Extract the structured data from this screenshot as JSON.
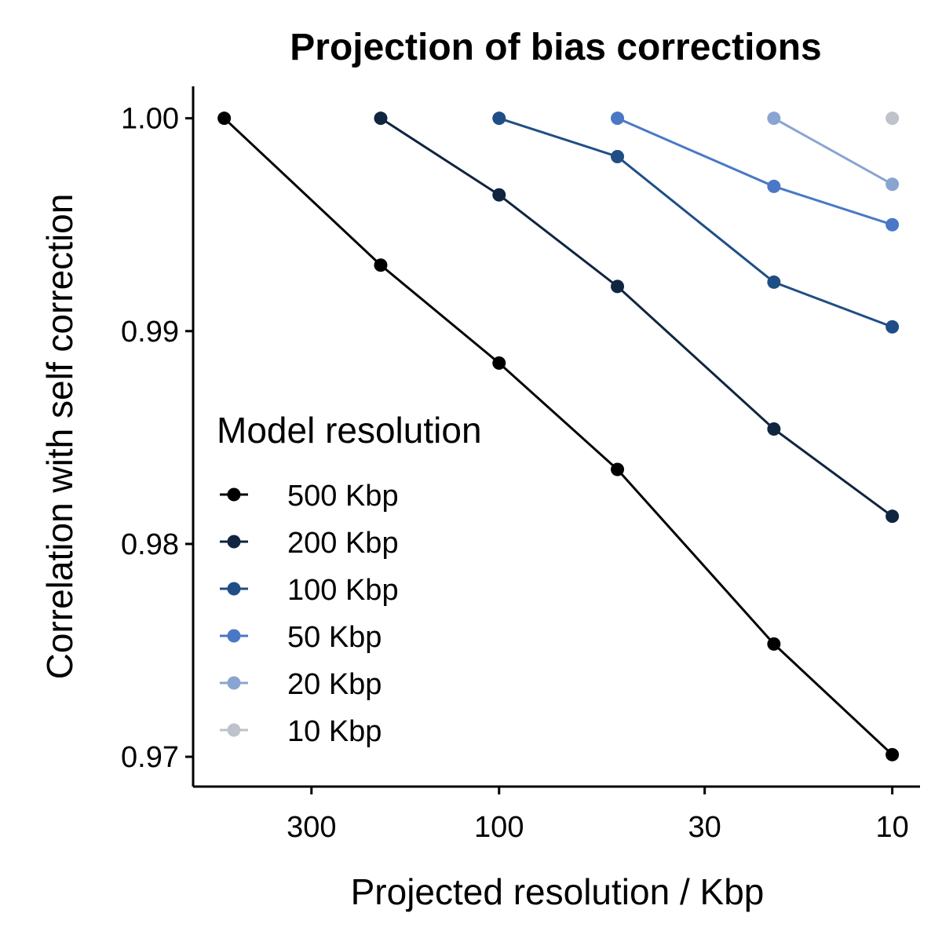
{
  "chart_data": {
    "type": "line",
    "title": "Projection of bias corrections",
    "xlabel": "Projected resolution / Kbp",
    "ylabel": "Correlation with self correction",
    "x_scale": "log",
    "x_reversed": true,
    "xlim": [
      600,
      8.5
    ],
    "ylim": [
      0.9686,
      1.0015
    ],
    "x_ticks": [
      300,
      100,
      30,
      10
    ],
    "x_tick_labels": [
      "300",
      "100",
      "30",
      "10"
    ],
    "y_ticks": [
      0.97,
      0.98,
      0.99,
      1.0
    ],
    "y_tick_labels": [
      "0.97",
      "0.98",
      "0.99",
      "1.00"
    ],
    "grid": false,
    "legend": {
      "title": "Model resolution",
      "position": "inside-left"
    },
    "series": [
      {
        "name": "500 Kbp",
        "color": "#000000",
        "x": [
          500,
          200,
          100,
          50,
          20,
          10
        ],
        "y": [
          1.0,
          0.9931,
          0.9885,
          0.9835,
          0.9753,
          0.9701
        ]
      },
      {
        "name": "200 Kbp",
        "color": "#0f2540",
        "x": [
          200,
          100,
          50,
          20,
          10
        ],
        "y": [
          1.0,
          0.9964,
          0.9921,
          0.9854,
          0.9813
        ]
      },
      {
        "name": "100 Kbp",
        "color": "#1f4e86",
        "x": [
          100,
          50,
          20,
          10
        ],
        "y": [
          1.0,
          0.9982,
          0.9923,
          0.9902
        ]
      },
      {
        "name": "50 Kbp",
        "color": "#4a78c5",
        "x": [
          50,
          20,
          10
        ],
        "y": [
          1.0,
          0.9968,
          0.995
        ]
      },
      {
        "name": "20 Kbp",
        "color": "#8aa4d2",
        "x": [
          20,
          10
        ],
        "y": [
          1.0,
          0.9969
        ]
      },
      {
        "name": "10 Kbp",
        "color": "#bec2ca",
        "x": [
          10
        ],
        "y": [
          1.0
        ]
      }
    ]
  }
}
